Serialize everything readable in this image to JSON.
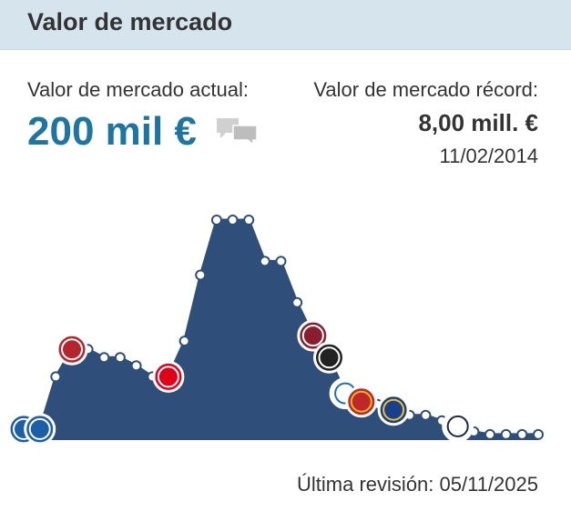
{
  "header": {
    "title": "Valor de mercado"
  },
  "current": {
    "label": "Valor de mercado actual:",
    "value": "200 mil €",
    "comment_icon": "speech-bubbles-icon"
  },
  "record": {
    "label": "Valor de mercado récord:",
    "value": "8,00 mill. €",
    "date": "11/02/2014"
  },
  "footer": {
    "last_review": "Última revisión: 05/11/2025"
  },
  "colors": {
    "header_bg": "#d6e4ee",
    "accent": "#1d75a3",
    "area_fill": "#2f4f7a",
    "marker_fill": "#ffffff"
  },
  "chart_data": {
    "type": "area",
    "grid": false,
    "points": [
      {
        "value": 0.4
      },
      {
        "value": 0.4
      },
      {
        "value": 2.3
      },
      {
        "value": 3.3
      },
      {
        "value": 3.3
      },
      {
        "value": 3.0
      },
      {
        "value": 3.0
      },
      {
        "value": 2.7
      },
      {
        "value": 2.3
      },
      {
        "value": 2.3
      },
      {
        "value": 3.6
      },
      {
        "value": 6.0
      },
      {
        "value": 8.0
      },
      {
        "value": 8.0
      },
      {
        "value": 8.0
      },
      {
        "value": 6.5
      },
      {
        "value": 6.5
      },
      {
        "value": 5.0
      },
      {
        "value": 3.8
      },
      {
        "value": 3.0
      },
      {
        "value": 1.7
      },
      {
        "value": 1.4
      },
      {
        "value": 1.3
      },
      {
        "value": 1.1
      },
      {
        "value": 0.9
      },
      {
        "value": 0.9
      },
      {
        "value": 0.7
      },
      {
        "value": 0.5
      },
      {
        "value": 0.3
      },
      {
        "value": 0.2
      },
      {
        "value": 0.2
      },
      {
        "value": 0.2
      },
      {
        "value": 0.2
      }
    ],
    "clubs": [
      {
        "name": "schalke-04",
        "point": 0,
        "fill": "#1d5ea8",
        "stroke": "#ffffff",
        "letter": "S"
      },
      {
        "name": "schalke-04",
        "point": 1,
        "fill": "#1d5ea8",
        "stroke": "#ffffff",
        "letter": "S"
      },
      {
        "name": "st-pauli",
        "point": 3,
        "fill": "#b3262e",
        "stroke": "#ffffff",
        "letter": ""
      },
      {
        "name": "eintracht-frankfurt",
        "point": 9,
        "fill": "#e1001a",
        "stroke": "#ffffff",
        "letter": ""
      },
      {
        "name": "rubin-kazan",
        "point": 18,
        "fill": "#8a1e2e",
        "stroke": "#ffffff",
        "letter": ""
      },
      {
        "name": "paok",
        "point": 19,
        "fill": "#222222",
        "stroke": "#ffffff",
        "letter": ""
      },
      {
        "name": "dynamo-kyiv",
        "point": 20,
        "fill": "#ffffff",
        "stroke": "#1d6fb8",
        "letter": ""
      },
      {
        "name": "xanthi",
        "point": 21,
        "fill": "#c0272d",
        "stroke": "#e8b820",
        "letter": ""
      },
      {
        "name": "boca-juniors",
        "point": 23,
        "fill": "#1a3f8f",
        "stroke": "#f4c21a",
        "letter": ""
      },
      {
        "name": "alianza-lima",
        "point": 27,
        "fill": "#ffffff",
        "stroke": "#1b2a4a",
        "letter": ""
      }
    ]
  }
}
